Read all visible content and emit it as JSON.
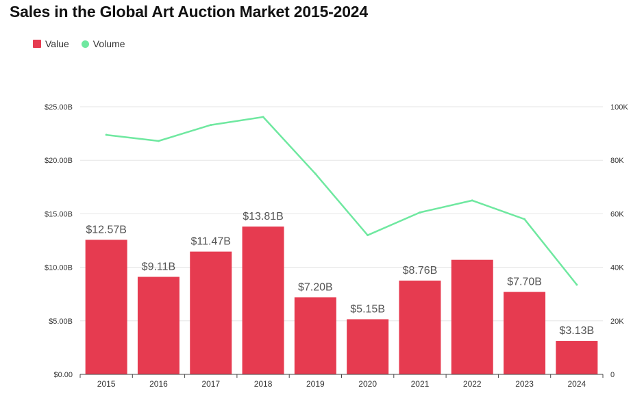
{
  "colors": {
    "value": "#e63b50",
    "volume": "#6fe8a0",
    "grid": "#e6e6e6",
    "axis": "#444444",
    "tick_text": "#333333",
    "label_text": "#555555"
  },
  "chart_data": {
    "type": "bar",
    "title": "Sales in the Global Art Auction Market 2015-2024",
    "categories": [
      "2015",
      "2016",
      "2017",
      "2018",
      "2019",
      "2020",
      "2021",
      "2022",
      "2023",
      "2024"
    ],
    "series": [
      {
        "name": "Value",
        "type": "bar",
        "axis": "left",
        "values": [
          12.57,
          9.11,
          11.47,
          13.81,
          7.2,
          5.15,
          8.76,
          10.7,
          7.7,
          3.13
        ],
        "labels": [
          "$12.57B",
          "$9.11B",
          "$11.47B",
          "$13.81B",
          "$7.20B",
          "$5.15B",
          "$8.76B",
          "",
          "$7.70B",
          "$3.13B"
        ]
      },
      {
        "name": "Volume",
        "type": "line",
        "axis": "right",
        "values": [
          89500,
          87200,
          93200,
          96200,
          75000,
          52000,
          60500,
          65000,
          58000,
          33500
        ]
      }
    ],
    "y_left": {
      "ylim": [
        0,
        25
      ],
      "ticks": [
        0,
        5,
        10,
        15,
        20,
        25
      ],
      "tick_labels": [
        "$0.00",
        "$5.00B",
        "$10.00B",
        "$15.00B",
        "$20.00B",
        "$25.00B"
      ]
    },
    "y_right": {
      "ylim": [
        0,
        100000
      ],
      "ticks": [
        0,
        20000,
        40000,
        60000,
        80000,
        100000
      ],
      "tick_labels": [
        "0",
        "20K",
        "40K",
        "60K",
        "80K",
        "100K"
      ]
    },
    "legend_position": "top-left",
    "grid": true
  }
}
